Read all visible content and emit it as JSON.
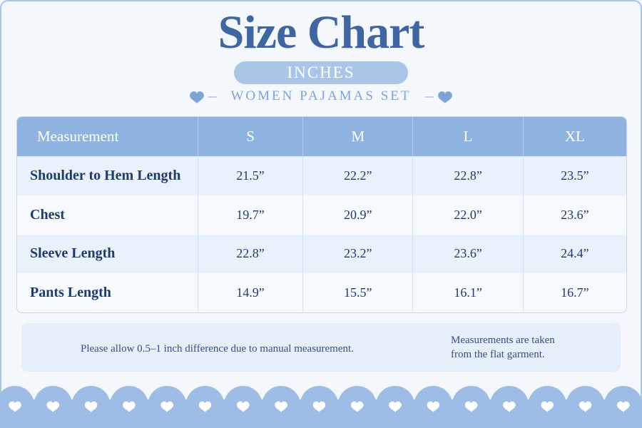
{
  "header": {
    "title": "Size Chart",
    "unit": "INCHES",
    "subtitle": "WOMEN PAJAMAS SET"
  },
  "table": {
    "columns": [
      "Measurement",
      "S",
      "M",
      "L",
      "XL"
    ],
    "rows": [
      [
        "Shoulder to Hem Length",
        "21.5”",
        "22.2”",
        "22.8”",
        "23.5”"
      ],
      [
        "Chest",
        "19.7”",
        "20.9”",
        "22.0”",
        "23.6”"
      ],
      [
        "Sleeve Length",
        "22.8”",
        "23.2”",
        "23.6”",
        "24.4”"
      ],
      [
        "Pants Length",
        "14.9”",
        "15.5”",
        "16.1”",
        "16.7”"
      ]
    ]
  },
  "notes": [
    {
      "lines": [
        "Please allow 0.5–1 inch difference due to manual measurement."
      ]
    },
    {
      "lines": [
        "Measurements are taken",
        "from the flat garment."
      ]
    }
  ]
}
